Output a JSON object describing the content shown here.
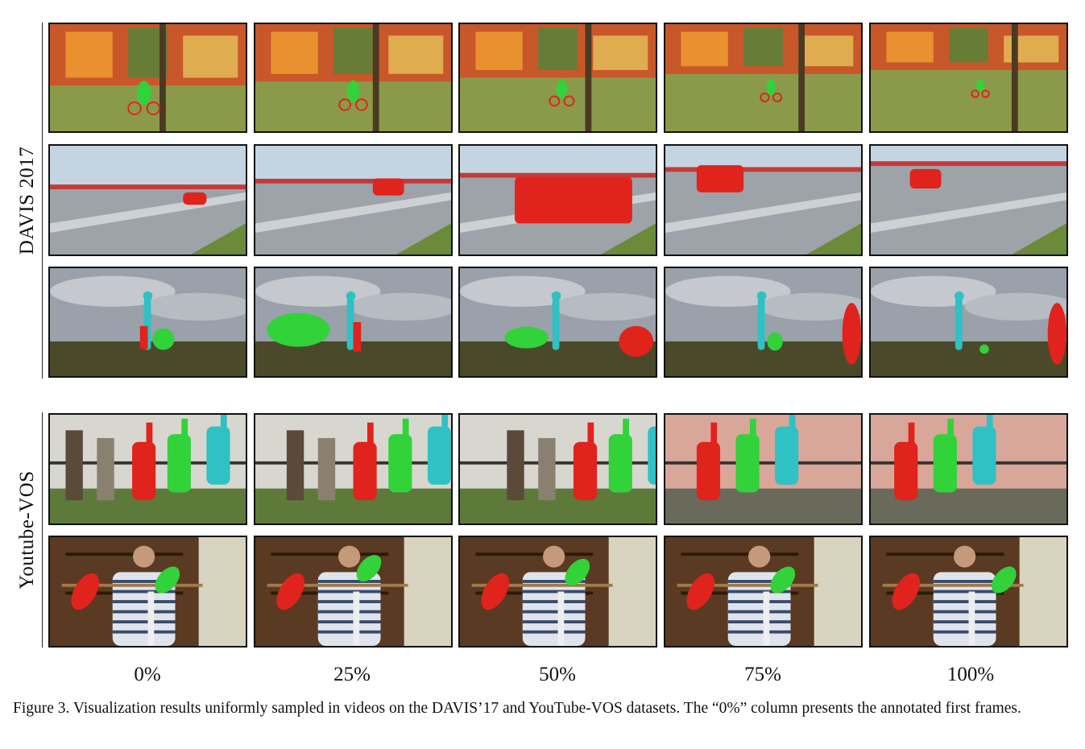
{
  "figure": {
    "groups": [
      {
        "label": "DAVIS 2017",
        "rows": [
          {
            "scene": "graffiti bike rider",
            "frames": [
              "frame 0%",
              "frame 25%",
              "frame 50%",
              "frame 75%",
              "frame 100%"
            ]
          },
          {
            "scene": "drifting red car",
            "frames": [
              "frame 0%",
              "frame 25%",
              "frame 50%",
              "frame 75%",
              "frame 100%"
            ]
          },
          {
            "scene": "dogs and person in field",
            "frames": [
              "frame 0%",
              "frame 25%",
              "frame 50%",
              "frame 75%",
              "frame 100%"
            ]
          }
        ]
      },
      {
        "label": "Youtube-VOS",
        "rows": [
          {
            "scene": "giraffes at fence",
            "frames": [
              "frame 0%",
              "frame 25%",
              "frame 50%",
              "frame 75%",
              "frame 100%"
            ]
          },
          {
            "scene": "man with parrots",
            "frames": [
              "frame 0%",
              "frame 25%",
              "frame 50%",
              "frame 75%",
              "frame 100%"
            ]
          }
        ]
      }
    ],
    "columns": [
      "0%",
      "25%",
      "50%",
      "75%",
      "100%"
    ],
    "mask_colors": {
      "red": "#e0231c",
      "green": "#32d23a",
      "cyan": "#2fc1c4"
    },
    "caption": "Figure 3. Visualization results uniformly sampled in videos on the DAVIS’17 and YouTube-VOS datasets. The “0%” column presents the annotated first frames."
  }
}
